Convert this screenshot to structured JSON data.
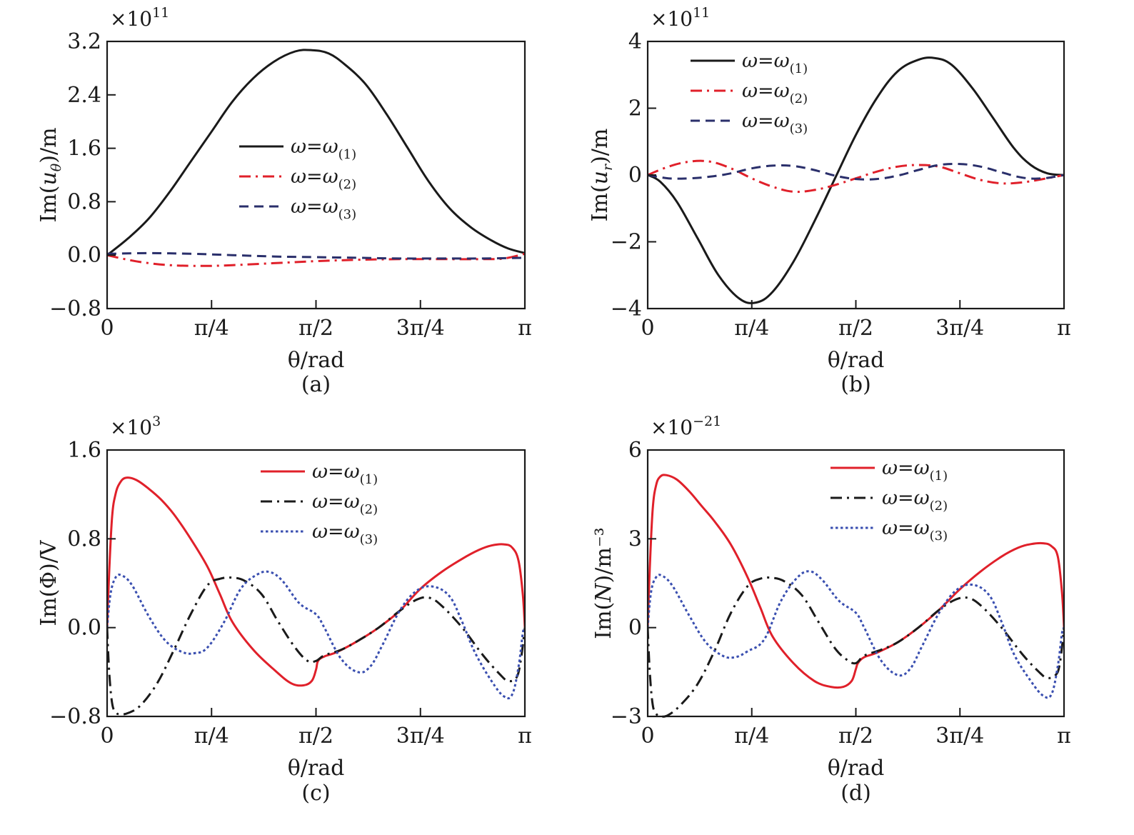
{
  "chart_data": [
    {
      "id": "a",
      "type": "line",
      "panel_label": "(a)",
      "xlabel": "θ/rad",
      "ylabel": "Im(u_θ)/m",
      "ylabel_parts": {
        "pre": "Im(",
        "var": "u",
        "sub": "θ",
        "post": ")/m"
      },
      "multiplier": {
        "base": "×10",
        "exp": "11"
      },
      "xlim": [
        0,
        1
      ],
      "x_unit": "π rad",
      "ylim": [
        -0.8,
        3.2
      ],
      "xticks": [
        0,
        0.25,
        0.5,
        0.75,
        1
      ],
      "xtick_labels": [
        "0",
        "π/4",
        "π/2",
        "3π/4",
        "π"
      ],
      "yticks": [
        -0.8,
        0.0,
        0.8,
        1.6,
        2.4,
        3.2
      ],
      "ytick_labels": [
        "−0.8",
        "0.0",
        "0.8",
        "1.6",
        "2.4",
        "3.2"
      ],
      "legend_position": "center",
      "series": [
        {
          "name": "ω=ω(1)",
          "label_main": "ω=ω",
          "label_sub": "(1)",
          "color": "#1a1a1a",
          "style": "solid",
          "x": [
            0,
            0.05,
            0.1,
            0.15,
            0.2,
            0.25,
            0.3,
            0.35,
            0.4,
            0.45,
            0.49,
            0.53,
            0.57,
            0.62,
            0.67,
            0.72,
            0.77,
            0.82,
            0.87,
            0.92,
            0.96,
            1.0
          ],
          "y": [
            0.0,
            0.25,
            0.55,
            0.95,
            1.4,
            1.85,
            2.3,
            2.65,
            2.9,
            3.05,
            3.07,
            3.02,
            2.85,
            2.55,
            2.1,
            1.6,
            1.1,
            0.7,
            0.42,
            0.22,
            0.1,
            0.03
          ]
        },
        {
          "name": "ω=ω(2)",
          "label_main": "ω=ω",
          "label_sub": "(2)",
          "color": "#e0202a",
          "style": "dashdot",
          "x": [
            0,
            0.05,
            0.1,
            0.15,
            0.2,
            0.25,
            0.3,
            0.4,
            0.5,
            0.6,
            0.7,
            0.8,
            0.9,
            0.95,
            1.0
          ],
          "y": [
            0.0,
            -0.07,
            -0.12,
            -0.15,
            -0.16,
            -0.16,
            -0.15,
            -0.12,
            -0.09,
            -0.07,
            -0.06,
            -0.06,
            -0.06,
            -0.05,
            0.02
          ]
        },
        {
          "name": "ω=ω(3)",
          "label_main": "ω=ω",
          "label_sub": "(3)",
          "color": "#2a2f6b",
          "style": "dashed",
          "x": [
            0,
            0.1,
            0.2,
            0.3,
            0.4,
            0.5,
            0.6,
            0.7,
            0.8,
            0.9,
            1.0
          ],
          "y": [
            0.02,
            0.03,
            0.02,
            0.0,
            -0.02,
            -0.03,
            -0.04,
            -0.05,
            -0.05,
            -0.05,
            -0.04
          ]
        }
      ]
    },
    {
      "id": "b",
      "type": "line",
      "panel_label": "(b)",
      "xlabel": "θ/rad",
      "ylabel": "Im(u_r)/m",
      "ylabel_parts": {
        "pre": "Im(",
        "var": "u",
        "sub": "r",
        "post": ")/m"
      },
      "multiplier": {
        "base": "×10",
        "exp": "11"
      },
      "xlim": [
        0,
        1
      ],
      "x_unit": "π rad",
      "ylim": [
        -4,
        4
      ],
      "xticks": [
        0,
        0.25,
        0.5,
        0.75,
        1
      ],
      "xtick_labels": [
        "0",
        "π/4",
        "π/2",
        "3π/4",
        "π"
      ],
      "yticks": [
        -4,
        -2,
        0,
        2,
        4
      ],
      "ytick_labels": [
        "−4",
        "−2",
        "0",
        "2",
        "4"
      ],
      "legend_position": "top-left",
      "series": [
        {
          "name": "ω=ω(1)",
          "label_main": "ω=ω",
          "label_sub": "(1)",
          "color": "#1a1a1a",
          "style": "solid",
          "x": [
            0,
            0.03,
            0.07,
            0.12,
            0.17,
            0.22,
            0.26,
            0.3,
            0.35,
            0.4,
            0.45,
            0.5,
            0.55,
            0.6,
            0.65,
            0.69,
            0.73,
            0.78,
            0.83,
            0.88,
            0.92,
            0.96,
            1.0
          ],
          "y": [
            0.0,
            -0.2,
            -0.8,
            -1.9,
            -3.0,
            -3.7,
            -3.82,
            -3.5,
            -2.6,
            -1.4,
            -0.1,
            1.2,
            2.3,
            3.1,
            3.45,
            3.5,
            3.3,
            2.6,
            1.7,
            0.8,
            0.3,
            0.05,
            0.0
          ]
        },
        {
          "name": "ω=ω(2)",
          "label_main": "ω=ω",
          "label_sub": "(2)",
          "color": "#e0202a",
          "style": "dashdot",
          "x": [
            0,
            0.05,
            0.1,
            0.15,
            0.2,
            0.25,
            0.3,
            0.35,
            0.4,
            0.45,
            0.5,
            0.55,
            0.6,
            0.65,
            0.7,
            0.75,
            0.8,
            0.85,
            0.9,
            0.95,
            1.0
          ],
          "y": [
            0.0,
            0.25,
            0.4,
            0.4,
            0.2,
            -0.1,
            -0.35,
            -0.5,
            -0.45,
            -0.3,
            -0.1,
            0.1,
            0.25,
            0.3,
            0.25,
            0.05,
            -0.15,
            -0.25,
            -0.22,
            -0.12,
            0.0
          ]
        },
        {
          "name": "ω=ω(3)",
          "label_main": "ω=ω",
          "label_sub": "(3)",
          "color": "#2a2f6b",
          "style": "dashed",
          "x": [
            0,
            0.05,
            0.1,
            0.15,
            0.2,
            0.25,
            0.3,
            0.35,
            0.4,
            0.45,
            0.5,
            0.55,
            0.6,
            0.65,
            0.7,
            0.75,
            0.8,
            0.85,
            0.9,
            0.95,
            1.0
          ],
          "y": [
            0.0,
            -0.1,
            -0.1,
            -0.05,
            0.05,
            0.2,
            0.28,
            0.27,
            0.15,
            -0.02,
            -0.12,
            -0.12,
            -0.02,
            0.15,
            0.3,
            0.33,
            0.25,
            0.08,
            -0.08,
            -0.1,
            0.0
          ]
        }
      ]
    },
    {
      "id": "c",
      "type": "line",
      "panel_label": "(c)",
      "xlabel": "θ/rad",
      "ylabel": "Im(Φ)/V",
      "ylabel_parts": {
        "pre": "Im(Φ)/V",
        "var": "",
        "sub": "",
        "post": ""
      },
      "multiplier": {
        "base": "×10",
        "exp": "3"
      },
      "xlim": [
        0,
        1
      ],
      "x_unit": "π rad",
      "ylim": [
        -0.8,
        1.6
      ],
      "xticks": [
        0,
        0.25,
        0.5,
        0.75,
        1
      ],
      "xtick_labels": [
        "0",
        "π/4",
        "π/2",
        "3π/4",
        "π"
      ],
      "yticks": [
        -0.8,
        0.0,
        0.8,
        1.6
      ],
      "ytick_labels": [
        "−0.8",
        "0.0",
        "0.8",
        "1.6"
      ],
      "legend_position": "top-right",
      "series": [
        {
          "name": "ω=ω(1)",
          "label_main": "ω=ω",
          "label_sub": "(1)",
          "color": "#e0202a",
          "style": "solid",
          "x": [
            0,
            0.005,
            0.012,
            0.02,
            0.03,
            0.045,
            0.07,
            0.1,
            0.13,
            0.16,
            0.2,
            0.24,
            0.27,
            0.3,
            0.35,
            0.4,
            0.44,
            0.47,
            0.49,
            0.5,
            0.505,
            0.52,
            0.55,
            0.6,
            0.65,
            0.7,
            0.75,
            0.8,
            0.85,
            0.89,
            0.92,
            0.95,
            0.97,
            0.985,
            0.995,
            1.0
          ],
          "y": [
            0.0,
            0.5,
            1.0,
            1.2,
            1.3,
            1.35,
            1.33,
            1.25,
            1.15,
            1.02,
            0.8,
            0.55,
            0.3,
            0.05,
            -0.2,
            -0.38,
            -0.5,
            -0.52,
            -0.48,
            -0.38,
            -0.3,
            -0.26,
            -0.22,
            -0.12,
            0.0,
            0.15,
            0.35,
            0.5,
            0.62,
            0.7,
            0.74,
            0.75,
            0.72,
            0.6,
            0.3,
            0.0
          ]
        },
        {
          "name": "ω=ω(2)",
          "label_main": "ω=ω",
          "label_sub": "(2)",
          "color": "#1a1a1a",
          "style": "dashdot",
          "x": [
            0,
            0.005,
            0.012,
            0.02,
            0.03,
            0.05,
            0.08,
            0.12,
            0.16,
            0.2,
            0.24,
            0.27,
            0.3,
            0.33,
            0.37,
            0.41,
            0.45,
            0.48,
            0.5,
            0.52,
            0.56,
            0.6,
            0.65,
            0.7,
            0.74,
            0.77,
            0.8,
            0.85,
            0.9,
            0.94,
            0.96,
            0.98,
            0.99,
            1.0
          ],
          "y": [
            0.0,
            -0.4,
            -0.68,
            -0.76,
            -0.78,
            -0.77,
            -0.7,
            -0.5,
            -0.2,
            0.12,
            0.38,
            0.44,
            0.45,
            0.42,
            0.3,
            0.05,
            -0.18,
            -0.3,
            -0.3,
            -0.25,
            -0.2,
            -0.12,
            0.0,
            0.15,
            0.25,
            0.27,
            0.2,
            0.0,
            -0.25,
            -0.42,
            -0.48,
            -0.45,
            -0.3,
            0.0
          ]
        },
        {
          "name": "ω=ω(3)",
          "label_main": "ω=ω",
          "label_sub": "(3)",
          "color": "#3a4fb0",
          "style": "dotted",
          "x": [
            0,
            0.008,
            0.02,
            0.035,
            0.06,
            0.1,
            0.14,
            0.18,
            0.21,
            0.24,
            0.28,
            0.32,
            0.36,
            0.39,
            0.42,
            0.46,
            0.5,
            0.52,
            0.56,
            0.6,
            0.63,
            0.66,
            0.7,
            0.74,
            0.78,
            0.82,
            0.85,
            0.88,
            0.92,
            0.95,
            0.97,
            0.985,
            0.995,
            1.0
          ],
          "y": [
            0.0,
            0.3,
            0.45,
            0.47,
            0.38,
            0.1,
            -0.12,
            -0.22,
            -0.23,
            -0.18,
            0.05,
            0.35,
            0.48,
            0.5,
            0.42,
            0.22,
            0.12,
            0.0,
            -0.28,
            -0.4,
            -0.35,
            -0.15,
            0.15,
            0.33,
            0.37,
            0.28,
            0.05,
            -0.22,
            -0.48,
            -0.62,
            -0.6,
            -0.35,
            -0.05,
            0.0
          ]
        }
      ]
    },
    {
      "id": "d",
      "type": "line",
      "panel_label": "(d)",
      "xlabel": "θ/rad",
      "ylabel": "Im(N)/m⁻³",
      "ylabel_parts": {
        "pre": "Im(",
        "var": "N",
        "sub": "",
        "post": ")/m⁻³"
      },
      "multiplier": {
        "base": "×10",
        "exp": "−21"
      },
      "xlim": [
        0,
        1
      ],
      "x_unit": "π rad",
      "ylim": [
        -3,
        6
      ],
      "xticks": [
        0,
        0.25,
        0.5,
        0.75,
        1
      ],
      "xtick_labels": [
        "0",
        "π/4",
        "π/2",
        "3π/4",
        "π"
      ],
      "yticks": [
        -3,
        0,
        3,
        6
      ],
      "ytick_labels": [
        "−3",
        "0",
        "3",
        "6"
      ],
      "legend_position": "top-right",
      "series": [
        {
          "name": "ω=ω(1)",
          "label_main": "ω=ω",
          "label_sub": "(1)",
          "color": "#e0202a",
          "style": "solid",
          "x": [
            0,
            0.005,
            0.012,
            0.02,
            0.03,
            0.045,
            0.07,
            0.1,
            0.13,
            0.16,
            0.2,
            0.24,
            0.27,
            0.3,
            0.35,
            0.4,
            0.44,
            0.47,
            0.49,
            0.5,
            0.505,
            0.52,
            0.55,
            0.6,
            0.65,
            0.7,
            0.75,
            0.8,
            0.85,
            0.89,
            0.92,
            0.95,
            0.97,
            0.985,
            0.995,
            1.0
          ],
          "y": [
            0.0,
            2.0,
            4.0,
            4.8,
            5.1,
            5.15,
            5.0,
            4.6,
            4.1,
            3.6,
            2.8,
            1.7,
            0.7,
            -0.3,
            -1.2,
            -1.8,
            -2.0,
            -2.0,
            -1.8,
            -1.4,
            -1.2,
            -1.0,
            -0.85,
            -0.5,
            0.0,
            0.6,
            1.3,
            1.9,
            2.4,
            2.7,
            2.82,
            2.85,
            2.75,
            2.4,
            1.2,
            0.0
          ]
        },
        {
          "name": "ω=ω(2)",
          "label_main": "ω=ω",
          "label_sub": "(2)",
          "color": "#1a1a1a",
          "style": "dashdot",
          "x": [
            0,
            0.005,
            0.012,
            0.02,
            0.03,
            0.05,
            0.08,
            0.12,
            0.16,
            0.2,
            0.24,
            0.27,
            0.3,
            0.33,
            0.37,
            0.41,
            0.45,
            0.48,
            0.5,
            0.52,
            0.56,
            0.6,
            0.65,
            0.7,
            0.74,
            0.77,
            0.8,
            0.85,
            0.9,
            0.94,
            0.96,
            0.98,
            0.99,
            1.0
          ],
          "y": [
            0.0,
            -1.5,
            -2.6,
            -2.9,
            -3.0,
            -2.95,
            -2.6,
            -1.9,
            -0.8,
            0.5,
            1.4,
            1.65,
            1.68,
            1.55,
            1.1,
            0.2,
            -0.7,
            -1.1,
            -1.2,
            -0.95,
            -0.75,
            -0.5,
            0.0,
            0.6,
            0.95,
            1.0,
            0.75,
            0.0,
            -0.9,
            -1.5,
            -1.7,
            -1.6,
            -1.2,
            0.0
          ]
        },
        {
          "name": "ω=ω(3)",
          "label_main": "ω=ω",
          "label_sub": "(3)",
          "color": "#3a4fb0",
          "style": "dotted",
          "x": [
            0,
            0.008,
            0.02,
            0.035,
            0.06,
            0.1,
            0.14,
            0.18,
            0.21,
            0.24,
            0.28,
            0.32,
            0.36,
            0.39,
            0.42,
            0.46,
            0.5,
            0.52,
            0.56,
            0.6,
            0.63,
            0.66,
            0.7,
            0.74,
            0.78,
            0.82,
            0.85,
            0.88,
            0.92,
            0.95,
            0.97,
            0.985,
            0.995,
            1.0
          ],
          "y": [
            0.0,
            1.2,
            1.7,
            1.75,
            1.4,
            0.4,
            -0.5,
            -0.95,
            -1.0,
            -0.8,
            -0.4,
            0.9,
            1.7,
            1.9,
            1.6,
            0.9,
            0.5,
            0.0,
            -1.1,
            -1.6,
            -1.4,
            -0.6,
            0.5,
            1.25,
            1.45,
            1.1,
            0.2,
            -0.9,
            -1.8,
            -2.3,
            -2.25,
            -1.3,
            -0.2,
            0.0
          ]
        }
      ]
    }
  ]
}
